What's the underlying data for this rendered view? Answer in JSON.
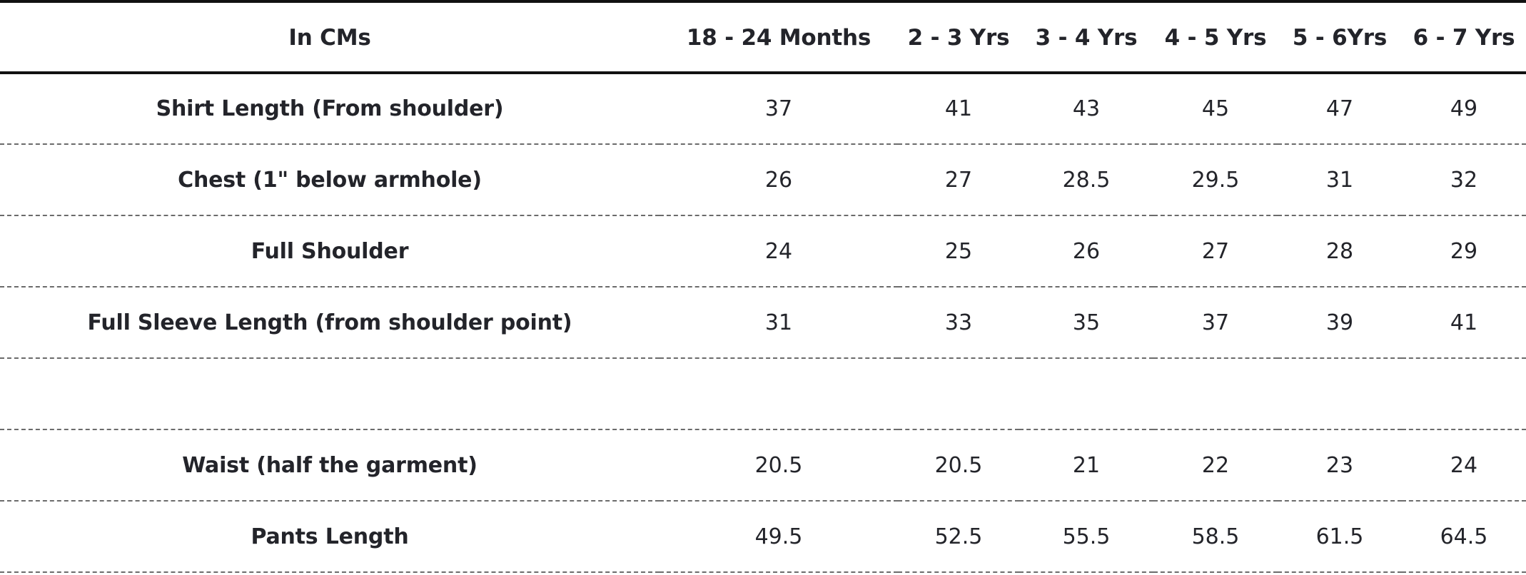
{
  "table": {
    "columns": [
      "In CMs",
      "18 - 24 Months",
      "2 - 3 Yrs",
      "3 - 4 Yrs",
      "4 - 5 Yrs",
      "5 - 6Yrs",
      "6 - 7 Yrs"
    ],
    "rows": [
      {
        "label": "Shirt Length (From shoulder)",
        "values": [
          "37",
          "41",
          "43",
          "45",
          "47",
          "49"
        ]
      },
      {
        "label": "Chest (1\" below armhole)",
        "values": [
          "26",
          "27",
          "28.5",
          "29.5",
          "31",
          "32"
        ]
      },
      {
        "label": "Full Shoulder",
        "values": [
          "24",
          "25",
          "26",
          "27",
          "28",
          "29"
        ]
      },
      {
        "label": "Full Sleeve Length (from shoulder point)",
        "values": [
          "31",
          "33",
          "35",
          "37",
          "39",
          "41"
        ]
      },
      {
        "label": "",
        "values": [
          "",
          "",
          "",
          "",
          "",
          ""
        ]
      },
      {
        "label": "Waist (half the garment)",
        "values": [
          "20.5",
          "20.5",
          "21",
          "22",
          "23",
          "24"
        ]
      },
      {
        "label": "Pants Length",
        "values": [
          "49.5",
          "52.5",
          "55.5",
          "58.5",
          "61.5",
          "64.5"
        ]
      }
    ]
  }
}
